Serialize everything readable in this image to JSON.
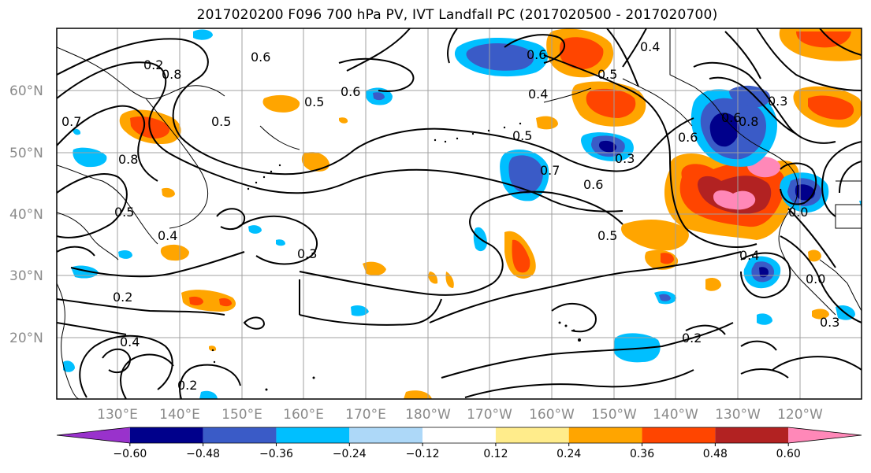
{
  "title": "2017020200 F096 700 hPa PV, IVT Landfall PC (2017020500 - 2017020700)",
  "map": {
    "lat_labels": [
      "60°N",
      "50°N",
      "40°N",
      "30°N",
      "20°N"
    ],
    "lon_labels": [
      "130°E",
      "140°E",
      "150°E",
      "160°E",
      "170°E",
      "180°W",
      "170°W",
      "160°W",
      "150°W",
      "140°W",
      "130°W",
      "120°W"
    ],
    "contour_labels": [
      "0.6",
      "0.8",
      "0.2",
      "0.5",
      "0.7",
      "0.5",
      "0.6",
      "0.4",
      "0.5",
      "0.4",
      "0.8",
      "0.5",
      "0.7",
      "0.6",
      "0.5",
      "0.3",
      "0.6",
      "0.5",
      "0.3",
      "0.2",
      "0.4",
      "0.2",
      "0.4",
      "0.4",
      "0.3",
      "0.2",
      "0.6",
      "0.8",
      "0.6",
      "0.0",
      "0.0",
      "0.3"
    ],
    "contour_color": "#000000"
  },
  "colorbar": {
    "tick_labels": [
      "−0.60",
      "−0.48",
      "−0.36",
      "−0.24",
      "−0.12",
      "0.12",
      "0.24",
      "0.36",
      "0.48",
      "0.60"
    ],
    "colors": [
      "#9932CC",
      "#00008B",
      "#3A5BC7",
      "#00BFFF",
      "#ADD8F8",
      "#FFFFFF",
      "#FFEC8B",
      "#FFA500",
      "#FF4500",
      "#B22222",
      "#FF88B8"
    ]
  }
}
